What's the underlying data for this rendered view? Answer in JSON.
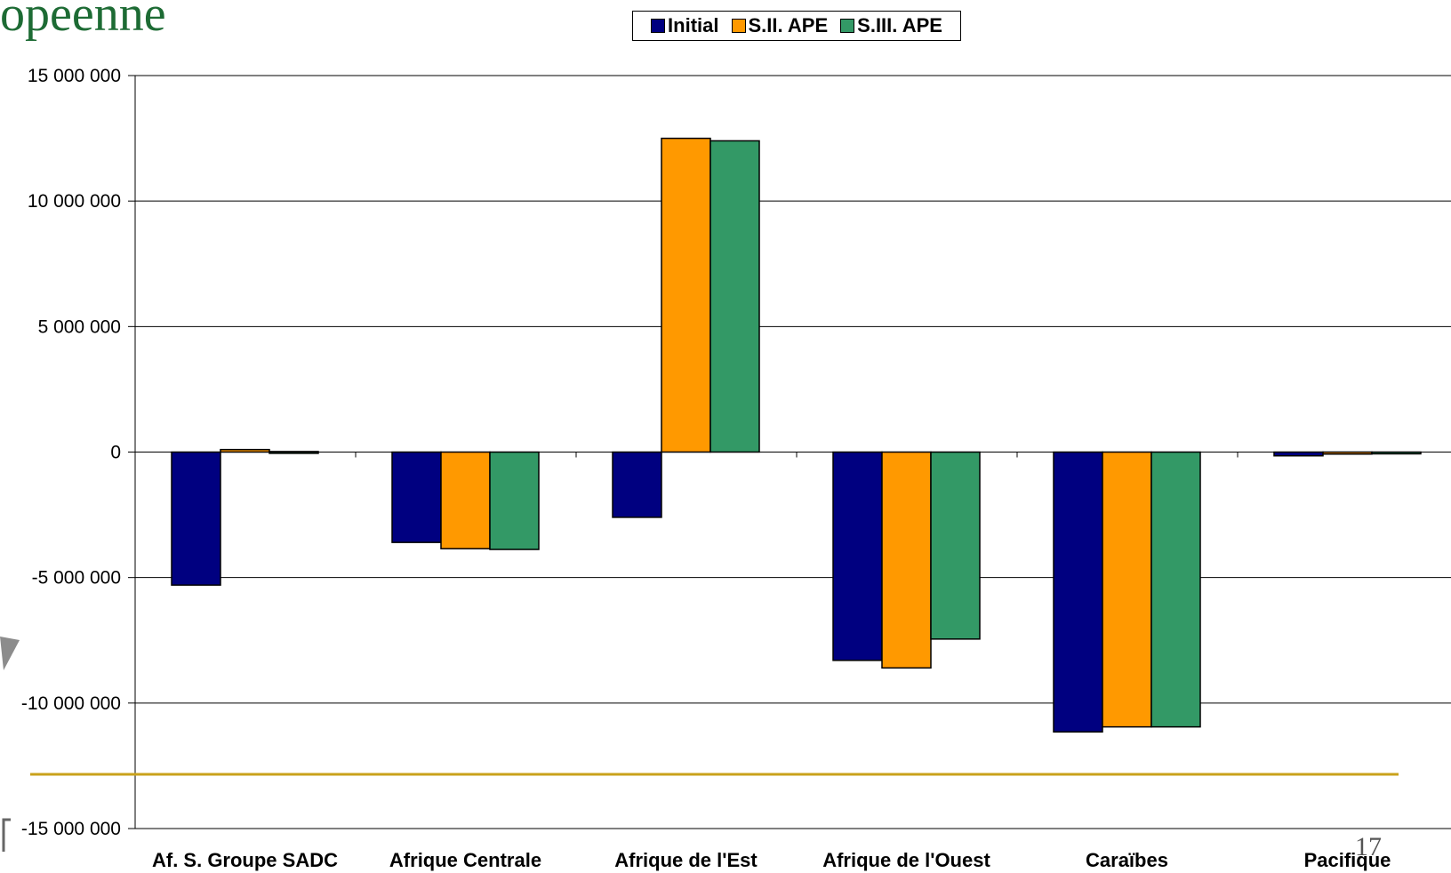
{
  "slide": {
    "title_fragment": "opeenne",
    "slide_number": "17"
  },
  "chart_data": {
    "type": "bar",
    "categories": [
      "Af. S. Groupe SADC",
      "Afrique Centrale",
      "Afrique de l'Est",
      "Afrique de l'Ouest",
      "Caraïbes",
      "Pacifique"
    ],
    "series": [
      {
        "name": "Initial",
        "color": "#000080",
        "values": [
          -5300000,
          -3600000,
          -2600000,
          -8300000,
          -11150000,
          -150000
        ]
      },
      {
        "name": "S.II. APE",
        "color": "#ff9900",
        "values": [
          100000,
          -3850000,
          12500000,
          -8600000,
          -10950000,
          -80000
        ]
      },
      {
        "name": "S.III. APE",
        "color": "#339966",
        "values": [
          20000,
          -3880000,
          12400000,
          -7450000,
          -10950000,
          -60000
        ]
      }
    ],
    "ylim": [
      -15000000,
      15000000
    ],
    "yticks": [
      15000000,
      10000000,
      5000000,
      0,
      -5000000,
      -10000000,
      -15000000
    ],
    "ytick_labels": [
      "15 000 000",
      "10 000 000",
      "5 000 000",
      "0",
      "-5 000 000",
      "-10 000 000",
      "-15 000 000"
    ],
    "grid": true,
    "legend_position": "top-center"
  },
  "colors": {
    "gold_line": "#c9a21b",
    "gridline": "#000000"
  }
}
